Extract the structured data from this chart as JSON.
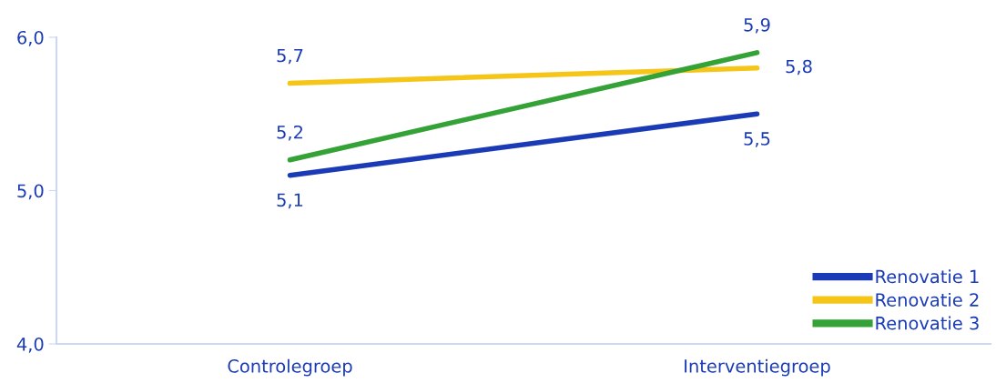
{
  "chart_data": {
    "type": "line",
    "categories": [
      "Controlegroep",
      "Interventiegroep"
    ],
    "series": [
      {
        "name": "Renovatie 1",
        "color": "#1a3bb5",
        "values": [
          5.1,
          5.5
        ],
        "value_labels": [
          "5,1",
          "5,5"
        ]
      },
      {
        "name": "Renovatie 2",
        "color": "#f5c518",
        "values": [
          5.7,
          5.8
        ],
        "value_labels": [
          "5,7",
          "5,8"
        ]
      },
      {
        "name": "Renovatie 3",
        "color": "#34a236",
        "values": [
          5.2,
          5.9
        ],
        "value_labels": [
          "5,2",
          "5,9"
        ]
      }
    ],
    "ylim": [
      4.0,
      6.0
    ],
    "yticks": [
      {
        "value": 4.0,
        "label": "4,0"
      },
      {
        "value": 5.0,
        "label": "5,0"
      },
      {
        "value": 6.0,
        "label": "6,0"
      }
    ],
    "grid": false,
    "legend": "bottom right",
    "marker": "none",
    "line_style": "solid"
  }
}
